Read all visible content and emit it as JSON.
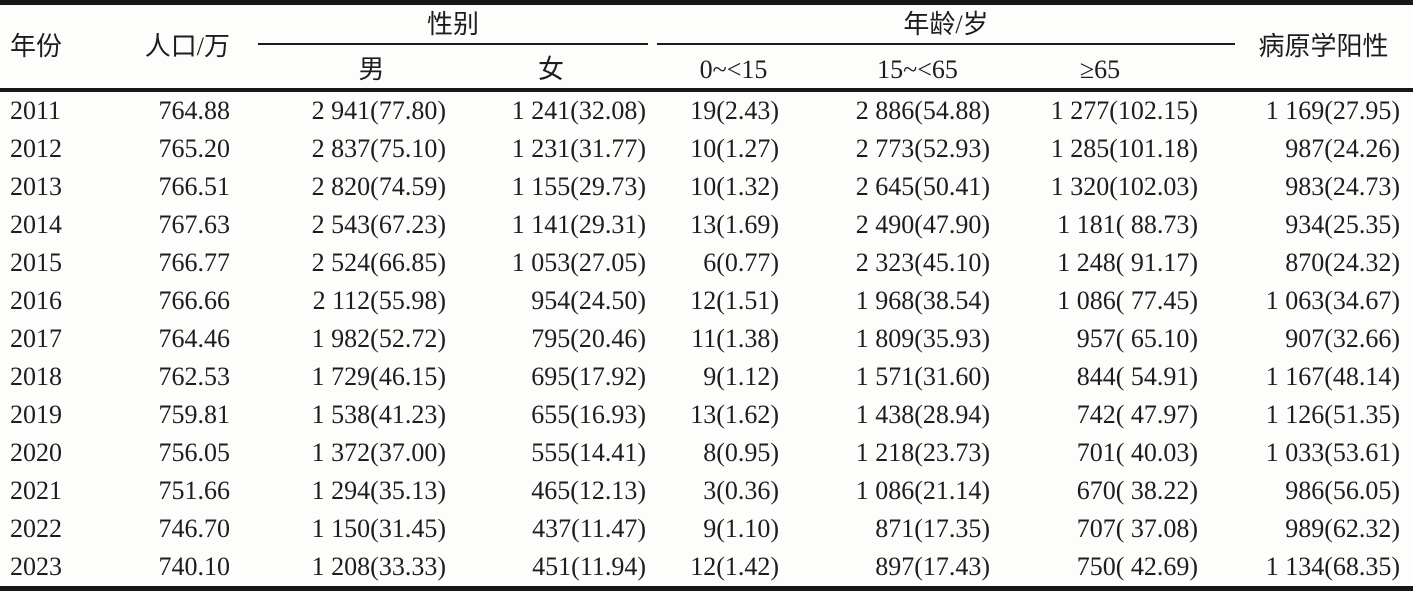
{
  "table": {
    "columns": {
      "year": "年份",
      "population": "人口/万",
      "gender_group": "性别",
      "male": "男",
      "female": "女",
      "age_group": "年龄/岁",
      "age_0_15": "0~<15",
      "age_15_65": "15~<65",
      "age_65": "≥65",
      "pathogen": "病原学阳性"
    },
    "rows": [
      {
        "year": "2011",
        "population": "764.88",
        "male": "2 941(77.80)",
        "female": "1 241(32.08)",
        "age_0_15": "19(2.43)",
        "age_15_65": "2 886(54.88)",
        "age_65": "1 277(102.15)",
        "pathogen": "1 169(27.95)"
      },
      {
        "year": "2012",
        "population": "765.20",
        "male": "2 837(75.10)",
        "female": "1 231(31.77)",
        "age_0_15": "10(1.27)",
        "age_15_65": "2 773(52.93)",
        "age_65": "1 285(101.18)",
        "pathogen": "987(24.26)"
      },
      {
        "year": "2013",
        "population": "766.51",
        "male": "2 820(74.59)",
        "female": "1 155(29.73)",
        "age_0_15": "10(1.32)",
        "age_15_65": "2 645(50.41)",
        "age_65": "1 320(102.03)",
        "pathogen": "983(24.73)"
      },
      {
        "year": "2014",
        "population": "767.63",
        "male": "2 543(67.23)",
        "female": "1 141(29.31)",
        "age_0_15": "13(1.69)",
        "age_15_65": "2 490(47.90)",
        "age_65": "1 181( 88.73)",
        "pathogen": "934(25.35)"
      },
      {
        "year": "2015",
        "population": "766.77",
        "male": "2 524(66.85)",
        "female": "1 053(27.05)",
        "age_0_15": "6(0.77)",
        "age_15_65": "2 323(45.10)",
        "age_65": "1 248( 91.17)",
        "pathogen": "870(24.32)"
      },
      {
        "year": "2016",
        "population": "766.66",
        "male": "2 112(55.98)",
        "female": "954(24.50)",
        "age_0_15": "12(1.51)",
        "age_15_65": "1 968(38.54)",
        "age_65": "1 086( 77.45)",
        "pathogen": "1 063(34.67)"
      },
      {
        "year": "2017",
        "population": "764.46",
        "male": "1 982(52.72)",
        "female": "795(20.46)",
        "age_0_15": "11(1.38)",
        "age_15_65": "1 809(35.93)",
        "age_65": "957( 65.10)",
        "pathogen": "907(32.66)"
      },
      {
        "year": "2018",
        "population": "762.53",
        "male": "1 729(46.15)",
        "female": "695(17.92)",
        "age_0_15": "9(1.12)",
        "age_15_65": "1 571(31.60)",
        "age_65": "844( 54.91)",
        "pathogen": "1 167(48.14)"
      },
      {
        "year": "2019",
        "population": "759.81",
        "male": "1 538(41.23)",
        "female": "655(16.93)",
        "age_0_15": "13(1.62)",
        "age_15_65": "1 438(28.94)",
        "age_65": "742( 47.97)",
        "pathogen": "1 126(51.35)"
      },
      {
        "year": "2020",
        "population": "756.05",
        "male": "1 372(37.00)",
        "female": "555(14.41)",
        "age_0_15": "8(0.95)",
        "age_15_65": "1 218(23.73)",
        "age_65": "701( 40.03)",
        "pathogen": "1 033(53.61)"
      },
      {
        "year": "2021",
        "population": "751.66",
        "male": "1 294(35.13)",
        "female": "465(12.13)",
        "age_0_15": "3(0.36)",
        "age_15_65": "1 086(21.14)",
        "age_65": "670( 38.22)",
        "pathogen": "986(56.05)"
      },
      {
        "year": "2022",
        "population": "746.70",
        "male": "1 150(31.45)",
        "female": "437(11.47)",
        "age_0_15": "9(1.10)",
        "age_15_65": "871(17.35)",
        "age_65": "707( 37.08)",
        "pathogen": "989(62.32)"
      },
      {
        "year": "2023",
        "population": "740.10",
        "male": "1 208(33.33)",
        "female": "451(11.94)",
        "age_0_15": "12(1.42)",
        "age_15_65": "897(17.43)",
        "age_65": "750( 42.69)",
        "pathogen": "1 134(68.35)"
      }
    ]
  }
}
